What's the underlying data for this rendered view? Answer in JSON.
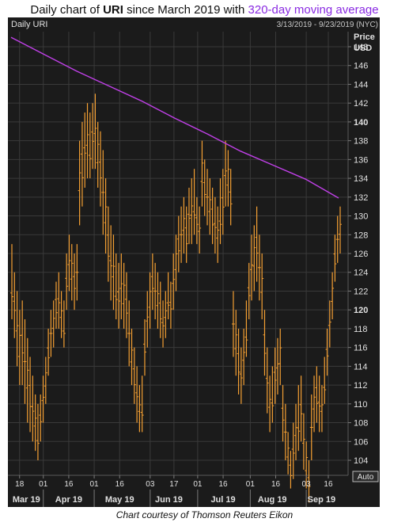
{
  "title": {
    "prefix": "Daily chart of",
    "ticker": "URI",
    "middle": "since March 2019 with",
    "ma_label": "320-day moving average"
  },
  "caption": "Chart courtesy of Thomson Reuters Eikon",
  "colors": {
    "background": "#1b1b1b",
    "bars": "#f5a033",
    "moving_average": "#c040e8",
    "grid": "#3a3a3a",
    "axis_text": "#e0e0e0"
  },
  "chart_data": {
    "type": "ohlc",
    "header_left": "Daily URI",
    "header_right": "3/13/2019 - 9/23/2019 (NYC)",
    "ylabel": "Price",
    "yunit": "USD",
    "ylim": [
      102.4,
      149.6
    ],
    "yticks": [
      104,
      106,
      108,
      110,
      112,
      114,
      116,
      118,
      120,
      122,
      124,
      126,
      128,
      130,
      132,
      134,
      136,
      138,
      140,
      142,
      144,
      146,
      148
    ],
    "bold_yticks": [
      120,
      140
    ],
    "auto_label": "Auto",
    "x_day_ticks": [
      {
        "label": "18",
        "date": "2019-03-18"
      },
      {
        "label": "01",
        "date": "2019-04-01"
      },
      {
        "label": "16",
        "date": "2019-04-16"
      },
      {
        "label": "01",
        "date": "2019-05-01"
      },
      {
        "label": "16",
        "date": "2019-05-16"
      },
      {
        "label": "03",
        "date": "2019-06-03"
      },
      {
        "label": "17",
        "date": "2019-06-17"
      },
      {
        "label": "01",
        "date": "2019-07-01"
      },
      {
        "label": "16",
        "date": "2019-07-16"
      },
      {
        "label": "01",
        "date": "2019-08-01"
      },
      {
        "label": "16",
        "date": "2019-08-16"
      },
      {
        "label": "03",
        "date": "2019-09-03"
      },
      {
        "label": "16",
        "date": "2019-09-16"
      }
    ],
    "x_month_labels": [
      {
        "label": "Mar 19",
        "date": "2019-03-22"
      },
      {
        "label": "Apr 19",
        "date": "2019-04-16"
      },
      {
        "label": "May 19",
        "date": "2019-05-16"
      },
      {
        "label": "Jun 19",
        "date": "2019-06-14"
      },
      {
        "label": "Jul 19",
        "date": "2019-07-16"
      },
      {
        "label": "Aug 19",
        "date": "2019-08-14"
      },
      {
        "label": "Sep 19",
        "date": "2019-09-12"
      }
    ],
    "month_starts": [
      "2019-04-01",
      "2019-05-01",
      "2019-06-03",
      "2019-07-01",
      "2019-08-01",
      "2019-09-03"
    ],
    "series": [
      {
        "name": "URI",
        "kind": "ohlc",
        "high": [
          127,
          124,
          122,
          120,
          121,
          119,
          117,
          115,
          113,
          111,
          110,
          111,
          113,
          115,
          118,
          120,
          121,
          123,
          124,
          122,
          121,
          126,
          128,
          127,
          126,
          127,
          138,
          140,
          141,
          142,
          141,
          142,
          143,
          140,
          139,
          137,
          134,
          131,
          129,
          128,
          126,
          125,
          126,
          125,
          124,
          121,
          118,
          116,
          114,
          112,
          113,
          119,
          122,
          124,
          126,
          125,
          124,
          123,
          121,
          122,
          124,
          123,
          126,
          128,
          130,
          131,
          132,
          131,
          133,
          134,
          135,
          132,
          131,
          138,
          136,
          135,
          134,
          133,
          132,
          131,
          134,
          135,
          138,
          137,
          135,
          122,
          120,
          118,
          116,
          118,
          121,
          125,
          128,
          129,
          131,
          128,
          126,
          120,
          116,
          113,
          114,
          116,
          117,
          118,
          112,
          110,
          107,
          105,
          108,
          110,
          112,
          113,
          109,
          106,
          104,
          111,
          113,
          114,
          113,
          112,
          115,
          118,
          121,
          124,
          128,
          130,
          131
        ],
        "low": [
          119,
          117,
          114,
          112,
          112,
          110,
          108,
          107,
          106,
          105,
          104,
          106,
          108,
          110,
          113,
          115,
          116,
          118,
          118,
          117,
          116,
          120,
          122,
          121,
          120,
          121,
          129,
          131,
          133,
          134,
          134,
          135,
          135,
          133,
          131,
          128,
          126,
          123,
          121,
          120,
          119,
          118,
          119,
          118,
          117,
          114,
          112,
          110,
          108,
          107,
          107,
          113,
          116,
          118,
          120,
          119,
          118,
          117,
          116,
          117,
          119,
          118,
          120,
          122,
          124,
          125,
          126,
          125,
          127,
          127,
          128,
          127,
          126,
          131,
          130,
          129,
          128,
          127,
          126,
          125,
          127,
          128,
          131,
          131,
          129,
          115,
          113,
          111,
          110,
          112,
          115,
          119,
          121,
          122,
          123,
          121,
          119,
          113,
          109,
          107,
          108,
          110,
          111,
          112,
          106,
          104,
          102.5,
          101,
          102,
          104,
          105,
          106,
          103,
          101,
          99.5,
          104,
          107,
          108,
          107,
          107,
          110,
          113,
          116,
          119,
          123,
          125,
          126
        ]
      },
      {
        "name": "320-day moving average",
        "kind": "line",
        "values": [
          149.0,
          147.2,
          145.4,
          143.8,
          142.2,
          140.4,
          138.7,
          136.9,
          135.4,
          133.9,
          131.9
        ]
      }
    ]
  }
}
